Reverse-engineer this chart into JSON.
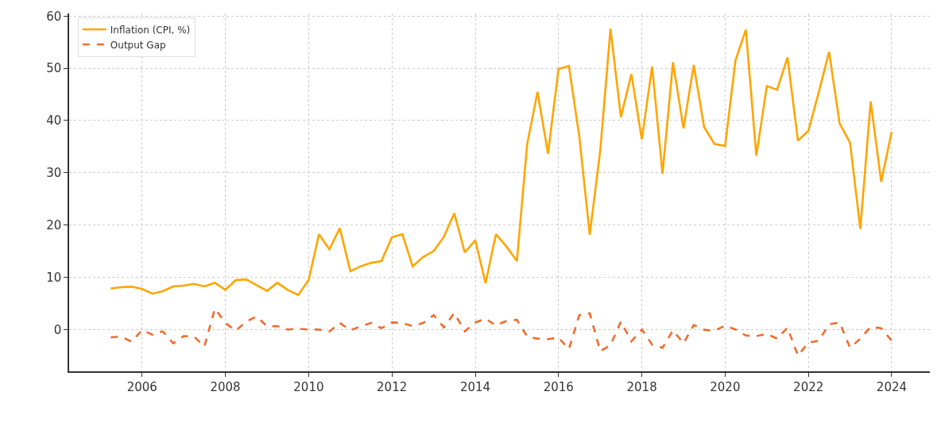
{
  "chart_data": {
    "type": "line",
    "x": [
      "2005-04",
      "2005-07",
      "2005-10",
      "2006-01",
      "2006-04",
      "2006-07",
      "2006-10",
      "2007-01",
      "2007-04",
      "2007-07",
      "2007-10",
      "2008-01",
      "2008-04",
      "2008-07",
      "2008-10",
      "2009-01",
      "2009-04",
      "2009-07",
      "2009-10",
      "2010-01",
      "2010-04",
      "2010-07",
      "2010-10",
      "2011-01",
      "2011-04",
      "2011-07",
      "2011-10",
      "2012-01",
      "2012-04",
      "2012-07",
      "2012-10",
      "2013-01",
      "2013-04",
      "2013-07",
      "2013-10",
      "2014-01",
      "2014-04",
      "2014-07",
      "2014-10",
      "2015-01",
      "2015-04",
      "2015-07",
      "2015-10",
      "2016-01",
      "2016-04",
      "2016-07",
      "2016-10",
      "2017-01",
      "2017-04",
      "2017-07",
      "2017-10",
      "2018-01",
      "2018-04",
      "2018-07",
      "2018-10",
      "2019-01",
      "2019-04",
      "2019-07",
      "2019-10",
      "2020-01",
      "2020-04",
      "2020-07",
      "2020-10",
      "2021-01",
      "2021-04",
      "2021-07",
      "2021-10",
      "2022-01",
      "2022-04",
      "2022-07",
      "2022-10",
      "2023-01",
      "2023-04",
      "2023-07",
      "2023-10",
      "2024-01"
    ],
    "series": [
      {
        "name": "Inflation (CPI, %)",
        "color": "#ffa500",
        "line_style": "solid",
        "values": [
          7.85,
          8.1,
          8.2,
          7.75,
          6.85,
          7.35,
          8.25,
          8.4,
          8.75,
          8.25,
          8.95,
          7.6,
          9.45,
          9.6,
          8.5,
          7.4,
          8.95,
          7.6,
          6.6,
          9.5,
          18.25,
          15.35,
          19.4,
          11.15,
          12.1,
          12.75,
          13.1,
          17.65,
          18.25,
          12.1,
          13.9,
          15,
          17.75,
          22.25,
          14.75,
          17.1,
          8.85,
          18.25,
          15.9,
          13.1,
          35.5,
          45.5,
          33.65,
          49.85,
          50.45,
          37,
          18.15,
          34.25,
          57.6,
          40.65,
          48.9,
          36.4,
          50.35,
          29.85,
          51.15,
          38.5,
          50.65,
          38.75,
          35.5,
          35.15,
          51.5,
          57.4,
          33.25,
          46.6,
          45.9,
          52.1,
          36.15,
          38.05,
          45.4,
          53.15,
          39.5,
          35.75,
          19.25,
          43.65,
          28.25,
          37.85
        ]
      },
      {
        "name": "Output Gap",
        "color": "#f26b2c",
        "line_style": "dashed",
        "values": [
          -1.5,
          -1.35,
          -2.35,
          -0.1,
          -1,
          -0.35,
          -2.65,
          -1.25,
          -1.35,
          -3.25,
          4,
          1.25,
          -0.25,
          1.5,
          2.5,
          0.6,
          0.65,
          0,
          0.15,
          0,
          0,
          -0.4,
          1.25,
          -0.15,
          0.6,
          1.25,
          0.25,
          1.35,
          1.25,
          0.65,
          1.25,
          2.75,
          0.4,
          3.15,
          -0.35,
          1.35,
          2.1,
          0.75,
          1.65,
          1.85,
          -1.35,
          -1.75,
          -1.85,
          -1.55,
          -3.75,
          2.75,
          3.1,
          -4.15,
          -3,
          1.5,
          -2.25,
          0,
          -2.9,
          -3.5,
          -0.15,
          -2.65,
          0.85,
          -0.05,
          -0.25,
          0.75,
          0,
          -1.15,
          -1.25,
          -0.85,
          -1.75,
          0.35,
          -5,
          -2.5,
          -2.15,
          1,
          1.35,
          -3.5,
          -1.75,
          0.5,
          0.25,
          -2.15
        ]
      }
    ],
    "xlim": [
      "2004-04",
      "2024-12"
    ],
    "xticks": [
      "2006",
      "2008",
      "2010",
      "2012",
      "2014",
      "2016",
      "2018",
      "2020",
      "2022",
      "2024"
    ],
    "ylim": [
      -8,
      60.5
    ],
    "yticks": [
      0,
      10,
      20,
      30,
      40,
      50,
      60
    ],
    "grid": true,
    "legend": "top left"
  }
}
